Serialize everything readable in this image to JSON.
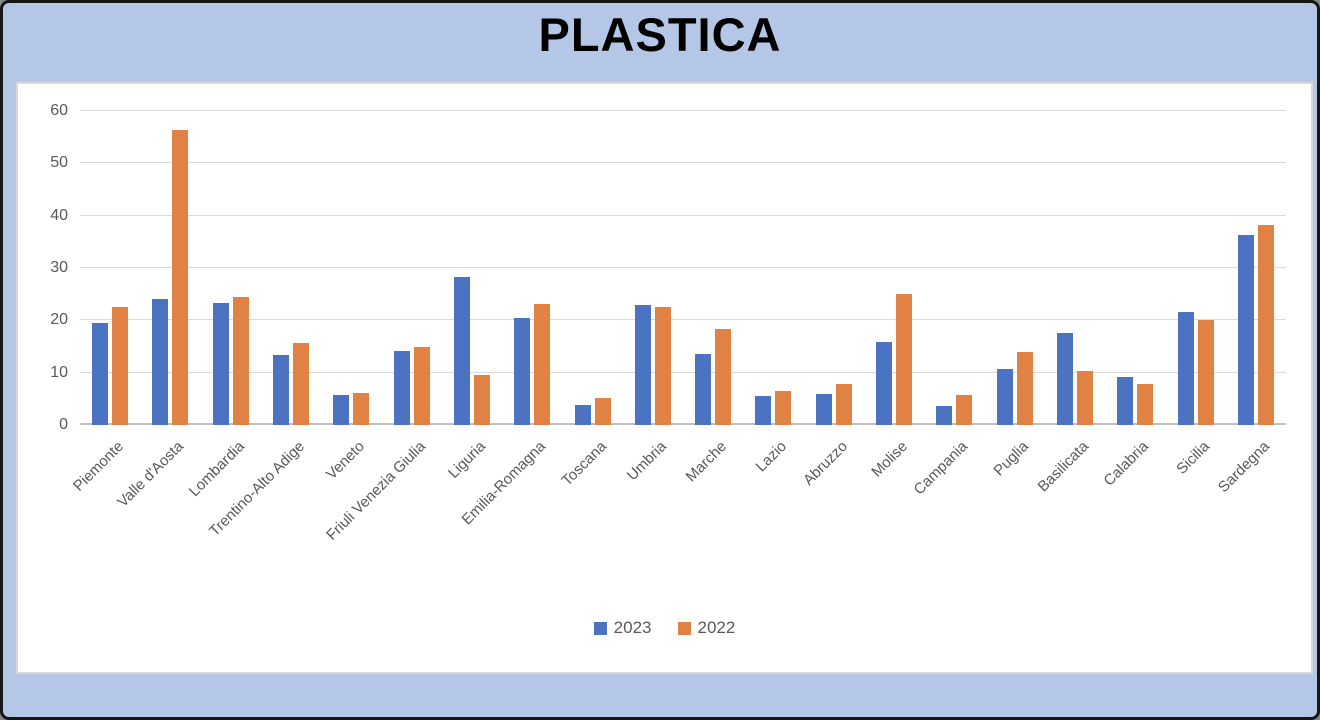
{
  "title": "PLASTICA",
  "colors": {
    "background": "#b4c7e7",
    "plot_background": "#ffffff",
    "outer_border": "#161616",
    "box_border": "#d8d8d8",
    "gridline": "#d9d9d9",
    "axis_line": "#c0c0c0",
    "axis_text": "#595959",
    "title_text": "#000000",
    "series_2023": "#4c73c1",
    "series_2022": "#e08244"
  },
  "chart_data": {
    "type": "bar",
    "title": "PLASTICA",
    "xlabel": "",
    "ylabel": "",
    "ylim": [
      0,
      60
    ],
    "yticks": [
      0,
      10,
      20,
      30,
      40,
      50,
      60
    ],
    "grid": true,
    "legend_position": "bottom",
    "categories": [
      "Piemonte",
      "Valle d'Aosta",
      "Lombardia",
      "Trentino-Alto Adige",
      "Veneto",
      "Friuli Venezia Giulia",
      "Liguria",
      "Emilia-Romagna",
      "Toscana",
      "Umbria",
      "Marche",
      "Lazio",
      "Abruzzo",
      "Molise",
      "Campania",
      "Puglia",
      "Basilicata",
      "Calabria",
      "Sicilia",
      "Sardegna"
    ],
    "series": [
      {
        "name": "2023",
        "color": "#4c73c1",
        "values": [
          19.4,
          24.1,
          23.3,
          13.4,
          5.7,
          14.2,
          28.3,
          20.4,
          3.9,
          23.0,
          13.6,
          5.6,
          6.0,
          15.8,
          3.6,
          10.7,
          17.6,
          9.2,
          21.6,
          36.3
        ]
      },
      {
        "name": "2022",
        "color": "#e08244",
        "values": [
          22.5,
          56.3,
          24.5,
          15.6,
          6.2,
          15.0,
          9.6,
          23.2,
          5.2,
          22.6,
          18.3,
          6.5,
          7.8,
          25.0,
          5.8,
          13.9,
          10.3,
          7.9,
          20.0,
          38.3
        ]
      }
    ]
  }
}
